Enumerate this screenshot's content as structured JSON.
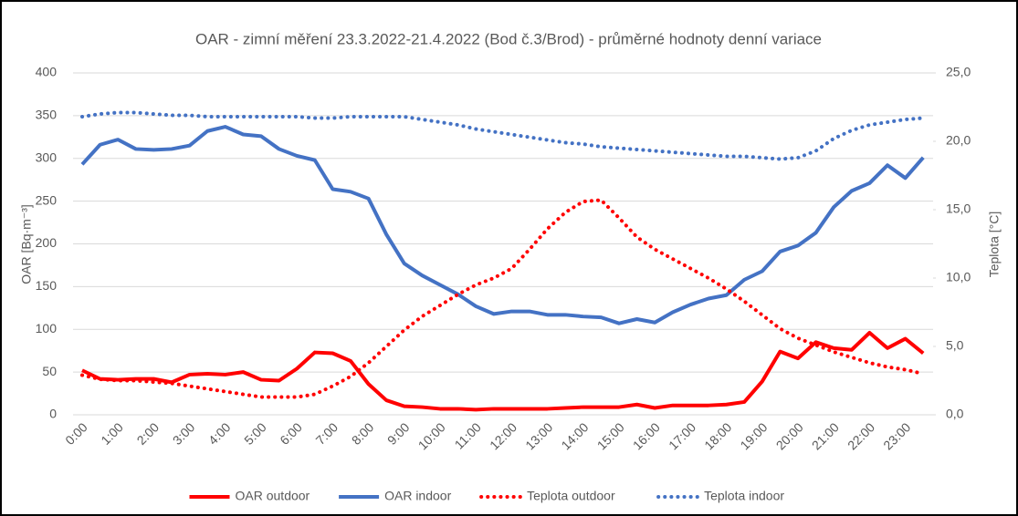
{
  "chart_data": {
    "type": "line",
    "title": "OAR - zimní měření 23.3.2022-21.4.2022 (Bod č.3/Brod) - průměrné hodnoty denní variace",
    "ylabel": "OAR [Bq·m⁻³]",
    "y2label": "Teplota [°C]",
    "categories": [
      "0:00",
      null,
      "1:00",
      null,
      "2:00",
      null,
      "3:00",
      null,
      "4:00",
      null,
      "5:00",
      null,
      "6:00",
      null,
      "7:00",
      null,
      "8:00",
      null,
      "9:00",
      null,
      "10:00",
      null,
      "11:00",
      null,
      "12:00",
      null,
      "13:00",
      null,
      "14:00",
      null,
      "15:00",
      null,
      "16:00",
      null,
      "17:00",
      null,
      "18:00",
      null,
      "19:00",
      null,
      "20:00",
      null,
      "21:00",
      null,
      "22:00",
      null,
      "23:00",
      null
    ],
    "ylim": [
      0,
      400
    ],
    "yticks": [
      0,
      50,
      100,
      150,
      200,
      250,
      300,
      350,
      400
    ],
    "y2lim": [
      0,
      25
    ],
    "y2ticks": [
      {
        "value": 0,
        "label": "0,0"
      },
      {
        "value": 5,
        "label": "5,0"
      },
      {
        "value": 10,
        "label": "10,0"
      },
      {
        "value": 15,
        "label": "15,0"
      },
      {
        "value": 20,
        "label": "20,0"
      },
      {
        "value": 25,
        "label": "25,0"
      }
    ],
    "grid": true,
    "legend": "bottom",
    "series": [
      {
        "name": "OAR outdoor",
        "color": "#ff0000",
        "dash": "solid",
        "values": [
          52,
          42,
          41,
          42,
          42,
          38,
          47,
          48,
          47,
          50,
          41,
          40,
          54,
          73,
          72,
          63,
          36,
          17,
          10,
          9,
          7,
          7,
          6,
          7,
          7,
          7,
          7,
          8,
          9,
          9,
          9,
          12,
          8,
          11,
          11,
          11,
          12,
          15,
          39,
          74,
          66,
          85,
          78,
          76,
          96,
          78,
          89,
          72
        ]
      },
      {
        "name": "OAR indoor",
        "color": "#4472c4",
        "dash": "solid",
        "values": [
          293,
          316,
          322,
          311,
          310,
          311,
          315,
          332,
          337,
          328,
          326,
          311,
          303,
          298,
          264,
          261,
          253,
          211,
          177,
          163,
          152,
          141,
          127,
          118,
          121,
          121,
          117,
          117,
          115,
          114,
          107,
          112,
          108,
          120,
          129,
          136,
          140,
          158,
          168,
          191,
          198,
          213,
          243,
          262,
          271,
          292,
          277,
          301
        ]
      },
      {
        "name": "Teplota outdoor",
        "color": "#ff0000",
        "dash": "dotted",
        "axis": "y2",
        "values": [
          2.9,
          2.6,
          2.5,
          2.5,
          2.4,
          2.3,
          2.1,
          1.9,
          1.7,
          1.5,
          1.3,
          1.3,
          1.3,
          1.5,
          2.1,
          2.8,
          3.8,
          5.0,
          6.2,
          7.2,
          8.0,
          8.8,
          9.5,
          10.0,
          10.7,
          12.1,
          13.6,
          14.8,
          15.6,
          15.7,
          14.4,
          13.0,
          12.1,
          11.4,
          10.7,
          10.0,
          9.2,
          8.3,
          7.3,
          6.3,
          5.6,
          5.1,
          4.6,
          4.2,
          3.8,
          3.5,
          3.3,
          3.0
        ]
      },
      {
        "name": "Teplota indoor",
        "color": "#4472c4",
        "dash": "dotted",
        "axis": "y2",
        "values": [
          21.8,
          22.0,
          22.1,
          22.1,
          22.0,
          21.9,
          21.9,
          21.8,
          21.8,
          21.8,
          21.8,
          21.8,
          21.8,
          21.7,
          21.7,
          21.8,
          21.8,
          21.8,
          21.8,
          21.6,
          21.4,
          21.2,
          20.9,
          20.7,
          20.5,
          20.3,
          20.1,
          19.9,
          19.8,
          19.6,
          19.5,
          19.4,
          19.3,
          19.2,
          19.1,
          19.0,
          18.9,
          18.9,
          18.8,
          18.7,
          18.8,
          19.3,
          20.2,
          20.8,
          21.2,
          21.4,
          21.6,
          21.7
        ]
      }
    ]
  }
}
